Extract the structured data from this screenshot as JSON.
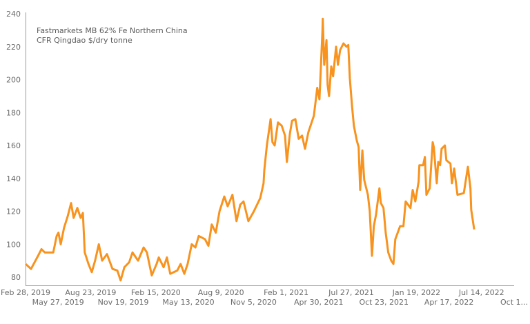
{
  "chart_data": {
    "type": "line",
    "title": "",
    "annotation": [
      "Fastmarkets MB 62% Fe Northern China",
      "CFR Qingdao $/dry tonne"
    ],
    "xlabel": "",
    "ylabel": "",
    "ylim": [
      80,
      240
    ],
    "yticks": [
      80,
      100,
      120,
      140,
      160,
      180,
      200,
      220,
      240
    ],
    "xlim": [
      "2019-02-28",
      "2022-10-10"
    ],
    "xticks": [
      {
        "date": "2019-02-28",
        "label": "Feb 28, 2019"
      },
      {
        "date": "2019-05-27",
        "label": "May 27, 2019"
      },
      {
        "date": "2019-08-23",
        "label": "Aug 23, 2019"
      },
      {
        "date": "2019-11-19",
        "label": "Nov 19, 2019"
      },
      {
        "date": "2020-02-15",
        "label": "Feb 15, 2020"
      },
      {
        "date": "2020-05-13",
        "label": "May 13, 2020"
      },
      {
        "date": "2020-08-09",
        "label": "Aug 9, 2020"
      },
      {
        "date": "2020-11-05",
        "label": "Nov 5, 2020"
      },
      {
        "date": "2021-02-01",
        "label": "Feb 1, 2021"
      },
      {
        "date": "2021-04-30",
        "label": "Apr 30, 2021"
      },
      {
        "date": "2021-07-27",
        "label": "Jul 27, 2021"
      },
      {
        "date": "2021-10-23",
        "label": "Oct 23, 2021"
      },
      {
        "date": "2022-01-19",
        "label": "Jan 19, 2022"
      },
      {
        "date": "2022-04-17",
        "label": "Apr 17, 2022"
      },
      {
        "date": "2022-07-14",
        "label": "Jul 14, 2022"
      },
      {
        "date": "2022-10-10",
        "label": "Oct 1..."
      }
    ],
    "grid": false,
    "legend": "none",
    "series": [
      {
        "color": "#f7931e",
        "x": [
          "2019-02-28",
          "2019-03-15",
          "2019-04-03",
          "2019-04-12",
          "2019-04-21",
          "2019-05-14",
          "2019-05-23",
          "2019-05-28",
          "2019-06-03",
          "2019-06-12",
          "2019-06-22",
          "2019-07-01",
          "2019-07-08",
          "2019-07-18",
          "2019-07-27",
          "2019-08-02",
          "2019-08-07",
          "2019-08-17",
          "2019-08-26",
          "2019-09-04",
          "2019-09-14",
          "2019-09-23",
          "2019-10-06",
          "2019-10-21",
          "2019-11-03",
          "2019-11-12",
          "2019-11-22",
          "2019-12-05",
          "2019-12-14",
          "2019-12-29",
          "2020-01-13",
          "2020-01-22",
          "2020-02-04",
          "2020-02-17",
          "2020-02-23",
          "2020-03-07",
          "2020-03-16",
          "2020-03-25",
          "2020-04-13",
          "2020-04-22",
          "2020-05-02",
          "2020-05-11",
          "2020-05-22",
          "2020-06-01",
          "2020-06-10",
          "2020-06-27",
          "2020-07-06",
          "2020-07-15",
          "2020-07-26",
          "2020-08-05",
          "2020-08-18",
          "2020-08-27",
          "2020-09-09",
          "2020-09-20",
          "2020-09-30",
          "2020-10-09",
          "2020-10-22",
          "2020-11-06",
          "2020-11-23",
          "2020-12-02",
          "2020-12-04",
          "2020-12-11",
          "2020-12-21",
          "2020-12-26",
          "2021-01-01",
          "2021-01-10",
          "2021-01-20",
          "2021-01-29",
          "2021-02-03",
          "2021-02-11",
          "2021-02-17",
          "2021-02-26",
          "2021-03-07",
          "2021-03-16",
          "2021-03-24",
          "2021-04-02",
          "2021-04-08",
          "2021-04-17",
          "2021-04-23",
          "2021-04-26",
          "2021-05-02",
          "2021-05-10",
          "2021-05-11",
          "2021-05-15",
          "2021-05-21",
          "2021-05-24",
          "2021-05-28",
          "2021-06-03",
          "2021-06-08",
          "2021-06-16",
          "2021-06-21",
          "2021-06-27",
          "2021-07-06",
          "2021-07-14",
          "2021-07-19",
          "2021-07-23",
          "2021-07-29",
          "2021-08-03",
          "2021-08-11",
          "2021-08-16",
          "2021-08-20",
          "2021-08-26",
          "2021-08-31",
          "2021-09-10",
          "2021-09-15",
          "2021-09-21",
          "2021-09-26",
          "2021-10-02",
          "2021-10-11",
          "2021-10-15",
          "2021-10-22",
          "2021-10-28",
          "2021-11-04",
          "2021-11-12",
          "2021-11-18",
          "2021-11-23",
          "2021-12-06",
          "2021-12-15",
          "2021-12-21",
          "2022-01-03",
          "2022-01-09",
          "2022-01-16",
          "2022-01-25",
          "2022-01-27",
          "2022-02-06",
          "2022-02-11",
          "2022-02-15",
          "2022-02-24",
          "2022-03-04",
          "2022-03-07",
          "2022-03-15",
          "2022-03-19",
          "2022-03-24",
          "2022-03-28",
          "2022-04-06",
          "2022-04-10",
          "2022-04-21",
          "2022-04-25",
          "2022-05-01",
          "2022-05-10",
          "2022-05-27",
          "2022-06-07",
          "2022-06-14",
          "2022-06-16",
          "2022-06-24"
        ],
        "y": [
          88,
          85,
          93,
          97,
          95,
          95,
          105,
          107,
          100,
          110,
          117,
          125,
          116,
          122,
          116,
          119,
          95,
          88,
          83,
          90,
          100,
          90,
          94,
          85,
          84,
          78,
          86,
          89,
          95,
          90,
          98,
          95,
          81,
          88,
          92,
          86,
          92,
          82,
          84,
          88,
          82,
          88,
          100,
          98,
          105,
          103,
          99,
          112,
          107,
          120,
          129,
          123,
          130,
          114,
          124,
          126,
          114,
          120,
          128,
          137,
          145,
          160,
          176,
          162,
          160,
          174,
          172,
          166,
          150,
          167,
          175,
          176,
          164,
          166,
          158,
          168,
          172,
          178,
          189,
          195,
          188,
          229,
          237,
          209,
          224,
          197,
          190,
          208,
          202,
          220,
          209,
          218,
          222,
          220,
          221,
          201,
          184,
          172,
          163,
          159,
          133,
          157,
          139,
          130,
          120,
          93,
          111,
          118,
          134,
          125,
          122,
          107,
          95,
          90,
          88,
          103,
          111,
          111,
          126,
          122,
          133,
          126,
          138,
          148,
          148,
          153,
          130,
          134,
          162,
          159,
          137,
          150,
          148,
          158,
          160,
          151,
          149,
          137,
          146,
          130,
          131,
          147,
          134,
          121,
          109
        ]
      }
    ]
  }
}
